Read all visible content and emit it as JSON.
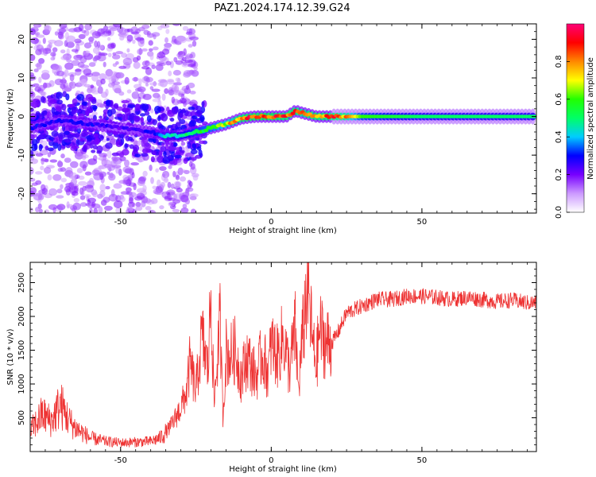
{
  "figure_title": "PAZ1.2024.174.12.39.G24",
  "chart_data": [
    {
      "type": "heatmap",
      "xlabel": "Height of straight line (km)",
      "ylabel": "Frequency (Hz)",
      "xlim": [
        -80,
        88
      ],
      "ylim": [
        -25,
        24
      ],
      "xticks": [
        -50,
        0,
        50
      ],
      "yticks": [
        -20,
        -10,
        0,
        10,
        20
      ],
      "colorbar": {
        "label": "Normalized spectral amplitude",
        "range": [
          0.0,
          1.0
        ],
        "ticks": [
          0.0,
          0.2,
          0.4,
          0.6,
          0.8
        ],
        "tick_labels": [
          "0.0",
          "0.2",
          "0.4",
          "0.6",
          "0.8"
        ],
        "colormap": [
          "#ffffff",
          "#cc99ff",
          "#7700ff",
          "#0000ff",
          "#00ccff",
          "#00ff66",
          "#22ff00",
          "#ffff00",
          "#ff8800",
          "#ff0000",
          "#ff0077"
        ]
      },
      "ridge": {
        "x": [
          -80,
          -70,
          -60,
          -50,
          -40,
          -35,
          -30,
          -25,
          -20,
          -15,
          -10,
          -5,
          0,
          5,
          8,
          10,
          15,
          20,
          25,
          30,
          40,
          50,
          60,
          70,
          80,
          88
        ],
        "freq": [
          -3,
          -1,
          -2,
          -3,
          -4,
          -5,
          -5,
          -4,
          -3,
          -2,
          -0.5,
          0,
          0,
          0,
          1.5,
          1,
          0,
          0,
          0,
          0,
          0,
          0,
          0,
          0,
          0,
          0
        ],
        "amplitude": [
          0.3,
          0.3,
          0.3,
          0.25,
          0.3,
          0.45,
          0.5,
          0.6,
          0.65,
          0.75,
          0.9,
          0.95,
          0.95,
          0.9,
          0.9,
          0.85,
          0.9,
          0.9,
          0.85,
          0.6,
          0.55,
          0.5,
          0.5,
          0.5,
          0.5,
          0.5
        ]
      }
    },
    {
      "type": "line",
      "xlabel": "Height of straight line (km)",
      "ylabel": "SNR (10 * v/v)",
      "xlim": [
        -80,
        88
      ],
      "ylim": [
        0,
        2800
      ],
      "xticks": [
        -50,
        0,
        50
      ],
      "yticks": [
        500,
        1000,
        1500,
        2000,
        2500
      ],
      "color": "#ee3333",
      "series": [
        {
          "x": [
            -80,
            -76,
            -73,
            -70,
            -67,
            -65,
            -60,
            -55,
            -50,
            -45,
            -40,
            -37,
            -35,
            -33,
            -30,
            -28,
            -27,
            -25,
            -23,
            -21,
            -20,
            -19,
            -17,
            -16,
            -15,
            -14,
            -12,
            -10,
            -8,
            -5,
            -3,
            -1,
            0,
            2,
            4,
            6,
            8,
            9,
            10,
            12,
            13,
            14,
            15,
            16,
            18,
            20,
            22,
            25,
            30,
            35,
            40,
            45,
            50,
            55,
            60,
            65,
            70,
            75,
            80,
            85,
            88
          ],
          "y": [
            300,
            550,
            450,
            700,
            450,
            350,
            200,
            150,
            130,
            140,
            150,
            200,
            280,
            400,
            650,
            900,
            1300,
            900,
            1700,
            1200,
            2400,
            700,
            1900,
            500,
            1500,
            1400,
            1500,
            1100,
            1400,
            1100,
            1450,
            1150,
            1600,
            1400,
            1700,
            1200,
            1800,
            900,
            1500,
            2500,
            2000,
            1500,
            1300,
            1800,
            1600,
            1600,
            1750,
            2050,
            2150,
            2250,
            2250,
            2300,
            2300,
            2280,
            2250,
            2280,
            2250,
            2220,
            2240,
            2200,
            2200
          ]
        }
      ]
    }
  ]
}
